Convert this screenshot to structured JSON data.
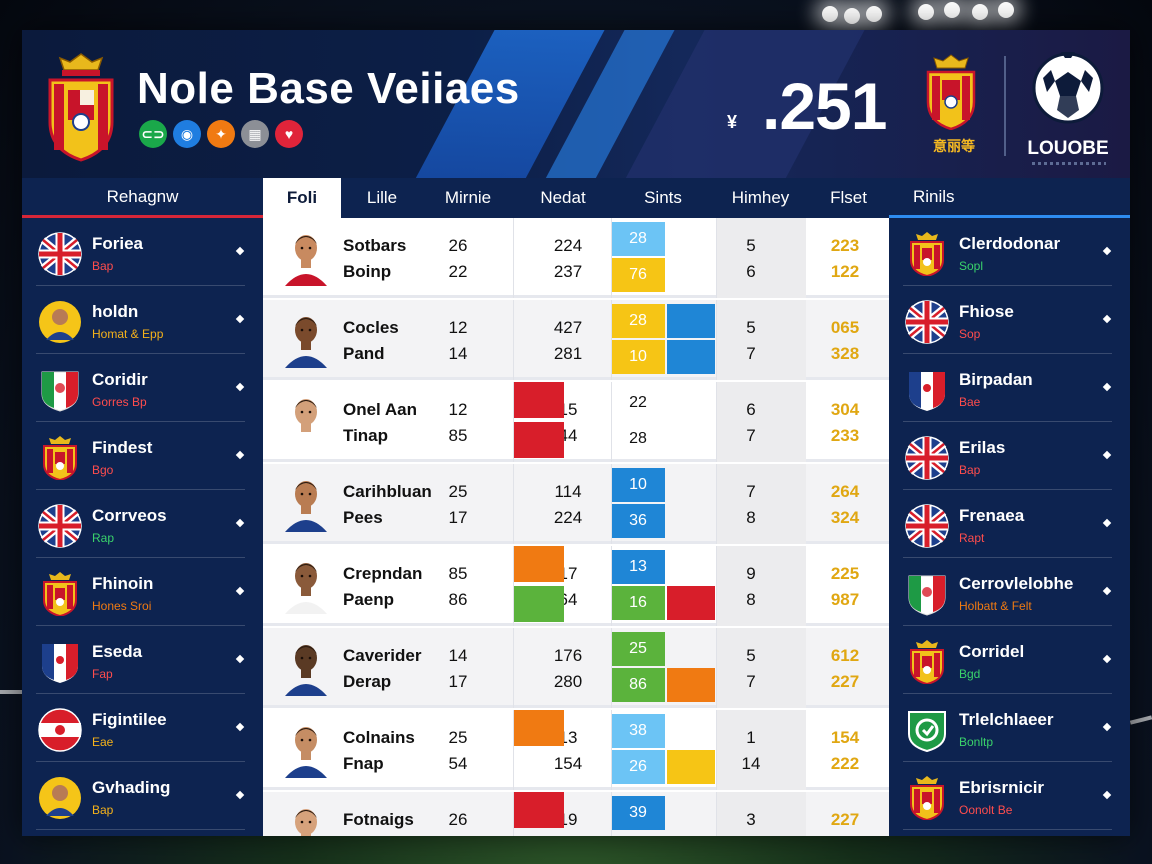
{
  "header": {
    "title": "Nole Base Veiiaes",
    "currency": "¥",
    "big_score": ".251",
    "crest_caption": "意丽等",
    "brand": "LOUOBE",
    "badges": [
      {
        "icon": "link-icon",
        "color": "#1aa84a",
        "glyph": "⊂⊃"
      },
      {
        "icon": "globe-icon",
        "color": "#1f7de0",
        "glyph": "◉"
      },
      {
        "icon": "fire-icon",
        "color": "#f07a12",
        "glyph": "✦"
      },
      {
        "icon": "chart-icon",
        "color": "#8c8f96",
        "glyph": "▦"
      },
      {
        "icon": "heart-icon",
        "color": "#e0243a",
        "glyph": "♥"
      }
    ]
  },
  "columns": {
    "left_header": "Rehagnw",
    "right_header": "Rinils",
    "main": [
      "Foli",
      "Lille",
      "Mirnie",
      "Nedat",
      "Sints",
      "Himhey",
      "Flset"
    ],
    "active_index": 0
  },
  "left_list": [
    {
      "name": "Foriea",
      "sub": "Bap",
      "sub_color": "#ff4d4d",
      "icon": "uk-flag-icon"
    },
    {
      "name": "holdn",
      "sub": "Homat & Epp",
      "sub_color": "#f5b21a",
      "icon": "player-avatar-icon"
    },
    {
      "name": "Coridir",
      "sub": "Gorres Bp",
      "sub_color": "#ff4d4d",
      "icon": "italy-shield-icon"
    },
    {
      "name": "Findest",
      "sub": "Bgo",
      "sub_color": "#ff4d4d",
      "icon": "crest-icon"
    },
    {
      "name": "Corrveos",
      "sub": "Rap",
      "sub_color": "#3ad36b",
      "icon": "uk-flag-icon"
    },
    {
      "name": "Fhinoin",
      "sub": "Hones Sroi",
      "sub_color": "#f07a12",
      "icon": "crest-icon"
    },
    {
      "name": "Eseda",
      "sub": "Fap",
      "sub_color": "#ff4d4d",
      "icon": "france-shield-icon"
    },
    {
      "name": "Figintilee",
      "sub": "Eae",
      "sub_color": "#f5b21a",
      "icon": "austria-flag-icon"
    },
    {
      "name": "Gvhading",
      "sub": "Bap",
      "sub_color": "#f5b21a",
      "icon": "player-avatar-icon"
    }
  ],
  "right_list": [
    {
      "name": "Clerdodonar",
      "sub": "Sopl",
      "sub_color": "#3ad36b",
      "icon": "crest-icon"
    },
    {
      "name": "Fhiose",
      "sub": "Sop",
      "sub_color": "#ff4d4d",
      "icon": "uk-flag-icon"
    },
    {
      "name": "Birpadan",
      "sub": "Bae",
      "sub_color": "#ff4d4d",
      "icon": "france-shield-icon"
    },
    {
      "name": "Erilas",
      "sub": "Bap",
      "sub_color": "#ff4d4d",
      "icon": "uk-flag-icon"
    },
    {
      "name": "Frenaea",
      "sub": "Rapt",
      "sub_color": "#ff4d4d",
      "icon": "uk-flag-icon"
    },
    {
      "name": "Cerrovlelobhe",
      "sub": "Holbatt & Felt",
      "sub_color": "#f07a12",
      "icon": "italy-shield-icon"
    },
    {
      "name": "Corridel",
      "sub": "Bgd",
      "sub_color": "#3ad36b",
      "icon": "crest-icon"
    },
    {
      "name": "Trlelchlaeer",
      "sub": "Bonltp",
      "sub_color": "#3ad36b",
      "icon": "green-badge-icon"
    },
    {
      "name": "Ebrisrnicir",
      "sub": "Oonolt Be",
      "sub_color": "#ff4d4d",
      "icon": "crest-icon"
    }
  ],
  "rows": [
    {
      "name1": "Sotbars",
      "name2": "Boinp",
      "a": [
        "26",
        "22"
      ],
      "b": [
        "224",
        "237"
      ],
      "blocks": [
        {
          "val": "28",
          "color": "#6cc4f5"
        },
        {
          "val": "76",
          "color": "#f6c515"
        }
      ],
      "blocks_right": [],
      "c": [
        "5",
        "6"
      ],
      "d": [
        "223",
        "122"
      ]
    },
    {
      "name1": "Cocles",
      "name2": "Pand",
      "a": [
        "12",
        "14"
      ],
      "b": [
        "427",
        "281"
      ],
      "blocks": [
        {
          "val": "28",
          "color": "#f6c515"
        },
        {
          "val": "10",
          "color": "#f6c515"
        }
      ],
      "blocks_right": [
        {
          "color": "#1f86d6"
        },
        {
          "color": "#1f86d6"
        }
      ],
      "c": [
        "5",
        "7"
      ],
      "d": [
        "065",
        "328"
      ]
    },
    {
      "name1": "Onel Aan",
      "name2": "Tinap",
      "a": [
        "12",
        "85"
      ],
      "b": [
        "15",
        "44"
      ],
      "blocks_left": [
        {
          "color": "#d81e2a"
        },
        {
          "color": "#d81e2a"
        }
      ],
      "blocks": [
        {
          "val": "22",
          "color": ""
        },
        {
          "val": "28",
          "color": ""
        }
      ],
      "blocks_right": [],
      "c": [
        "6",
        "7"
      ],
      "d": [
        "304",
        "233"
      ]
    },
    {
      "name1": "Carihbluan",
      "name2": "Pees",
      "a": [
        "25",
        "17"
      ],
      "b": [
        "114",
        "224"
      ],
      "blocks": [
        {
          "val": "10",
          "color": "#1f86d6"
        },
        {
          "val": "36",
          "color": "#1f86d6"
        }
      ],
      "blocks_right": [],
      "c": [
        "7",
        "8"
      ],
      "d": [
        "264",
        "324"
      ]
    },
    {
      "name1": "Crepndan",
      "name2": "Paenp",
      "a": [
        "85",
        "86"
      ],
      "b": [
        "17",
        "64"
      ],
      "blocks_left": [
        {
          "color": "#f07a12"
        },
        {
          "color": "#5bb33c"
        }
      ],
      "blocks": [
        {
          "val": "13",
          "color": "#1f86d6"
        },
        {
          "val": "16",
          "color": "#5bb33c"
        }
      ],
      "blocks_right": [
        {
          "color": ""
        },
        {
          "color": "#d81e2a"
        }
      ],
      "c": [
        "9",
        "8"
      ],
      "d": [
        "225",
        "987"
      ]
    },
    {
      "name1": "Caverider",
      "name2": "Derap",
      "a": [
        "14",
        "17"
      ],
      "b": [
        "176",
        "280"
      ],
      "blocks": [
        {
          "val": "25",
          "color": "#5bb33c"
        },
        {
          "val": "86",
          "color": "#5bb33c"
        }
      ],
      "blocks_right": [
        {
          "color": ""
        },
        {
          "color": "#f07a12"
        }
      ],
      "c": [
        "5",
        "7"
      ],
      "d": [
        "612",
        "227"
      ]
    },
    {
      "name1": "Colnains",
      "name2": "Fnap",
      "a": [
        "25",
        "54"
      ],
      "b": [
        "13",
        "154"
      ],
      "blocks_left": [
        {
          "color": "#f07a12"
        },
        {
          "color": ""
        }
      ],
      "blocks": [
        {
          "val": "38",
          "color": "#6cc4f5"
        },
        {
          "val": "26",
          "color": "#6cc4f5"
        }
      ],
      "blocks_right": [
        {
          "color": ""
        },
        {
          "color": "#f6c515"
        }
      ],
      "c": [
        "1",
        "14"
      ],
      "d": [
        "154",
        "222"
      ]
    },
    {
      "name1": "Fotnaigs",
      "name2": "",
      "a": [
        "26",
        ""
      ],
      "b": [
        "19",
        ""
      ],
      "blocks_left": [
        {
          "color": "#d81e2a"
        },
        {
          "color": ""
        }
      ],
      "blocks": [
        {
          "val": "39",
          "color": "#1f86d6"
        },
        {
          "val": "",
          "color": ""
        }
      ],
      "blocks_right": [],
      "c": [
        "3",
        ""
      ],
      "d": [
        "227",
        ""
      ]
    }
  ]
}
